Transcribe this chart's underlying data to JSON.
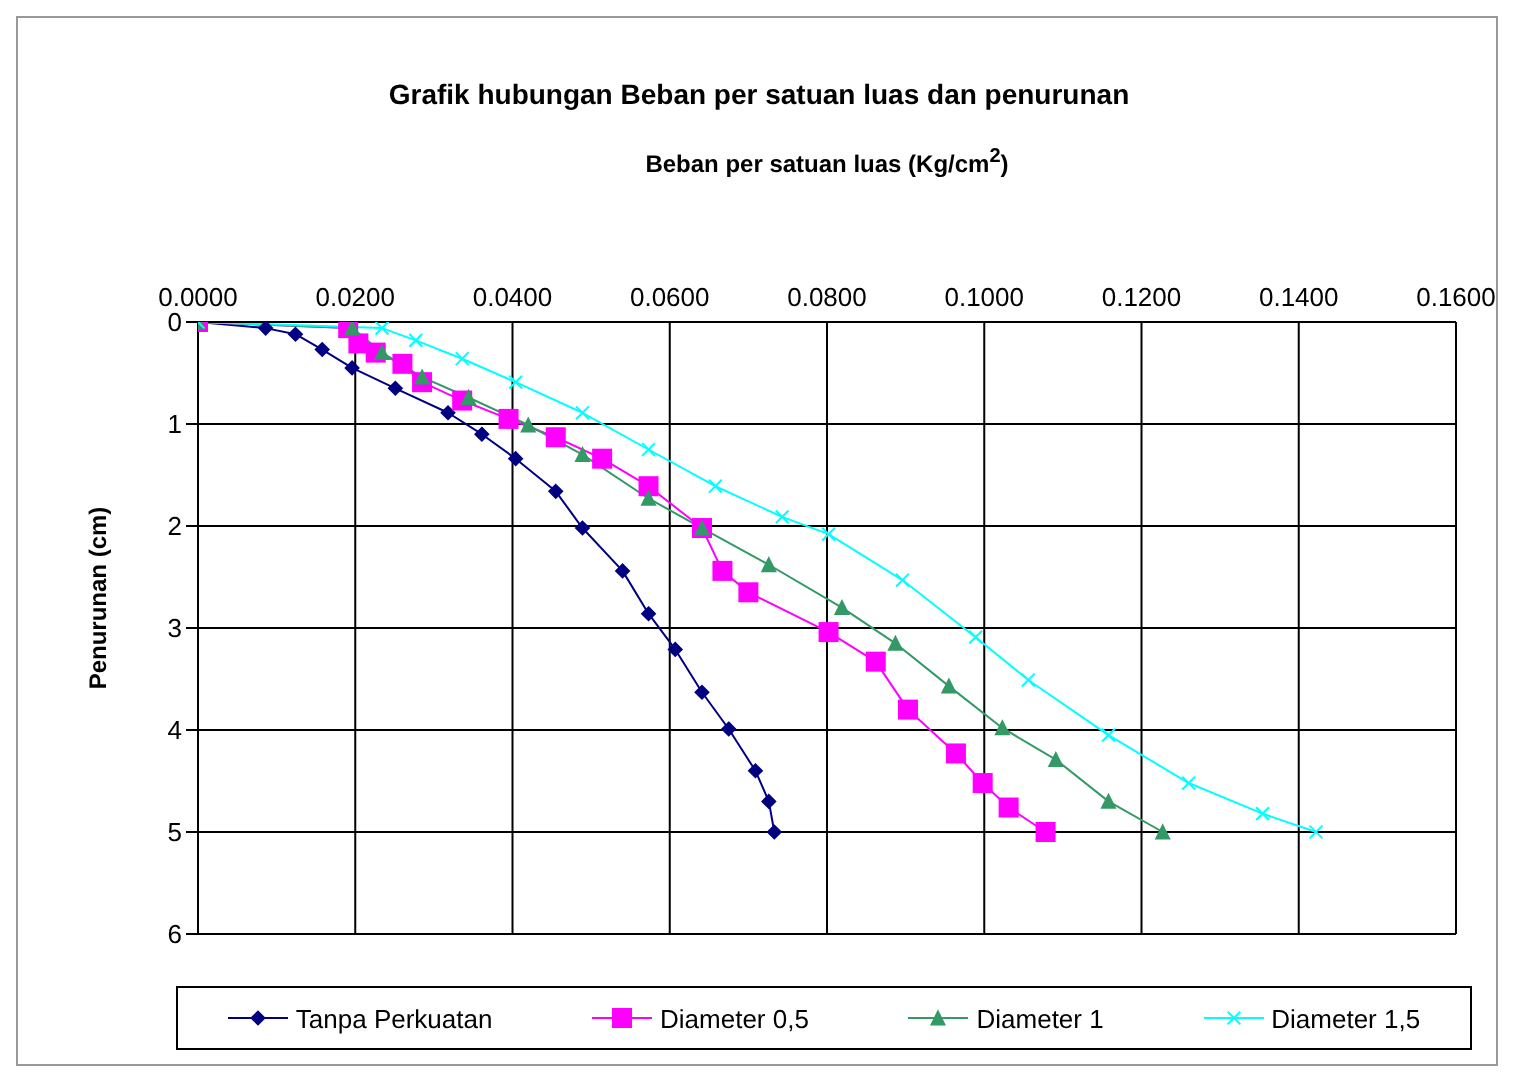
{
  "chart_data": {
    "type": "line",
    "title": "Grafik hubungan Beban per satuan luas dan penurunan",
    "xlabel": "Beban per satuan luas (Kg/cm$^{2}$)",
    "ylabel": "Penurunan  (cm)",
    "xlim": [
      0,
      0.16
    ],
    "xticks": [
      {
        "value": 0,
        "label": "0.0000"
      },
      {
        "value": 0.02,
        "label": "0.0200"
      },
      {
        "value": 0.04,
        "label": "0.0400"
      },
      {
        "value": 0.06,
        "label": "0.0600"
      },
      {
        "value": 0.08,
        "label": "0.0800"
      },
      {
        "value": 0.1,
        "label": "0.1000"
      },
      {
        "value": 0.12,
        "label": "0.1200"
      },
      {
        "value": 0.14,
        "label": "0.1400"
      },
      {
        "value": 0.16,
        "label": "0.1600"
      }
    ],
    "ylim": [
      6,
      0
    ],
    "yticks": [
      0,
      1,
      2,
      3,
      4,
      5,
      6
    ],
    "grid": true,
    "legend": "bottom",
    "series": [
      {
        "name": "Tanpa Perkuatan",
        "color": "#000080",
        "marker": "diamond",
        "x": [
          0,
          0.0086,
          0.0124,
          0.0158,
          0.0196,
          0.0251,
          0.0318,
          0.0361,
          0.0404,
          0.0455,
          0.0489,
          0.054,
          0.0573,
          0.0607,
          0.0641,
          0.0675,
          0.0709,
          0.0726,
          0.0733
        ],
        "values": [
          0,
          0.06,
          0.12,
          0.27,
          0.45,
          0.65,
          0.89,
          1.1,
          1.34,
          1.66,
          2.02,
          2.44,
          2.86,
          3.21,
          3.63,
          3.99,
          4.4,
          4.7,
          5
        ]
      },
      {
        "name": "Diameter 0,5",
        "color": "#ff00ff",
        "marker": "square",
        "x": [
          0,
          0.0191,
          0.0204,
          0.0226,
          0.026,
          0.0285,
          0.0336,
          0.0395,
          0.0455,
          0.0514,
          0.0573,
          0.0641,
          0.0667,
          0.07,
          0.0802,
          0.0862,
          0.0903,
          0.0964,
          0.0998,
          0.1031,
          0.1078
        ],
        "values": [
          0,
          0.06,
          0.21,
          0.3,
          0.41,
          0.59,
          0.77,
          0.95,
          1.13,
          1.34,
          1.61,
          2.02,
          2.44,
          2.65,
          3.04,
          3.33,
          3.8,
          4.23,
          4.52,
          4.76,
          5
        ]
      },
      {
        "name": "Diameter 1",
        "color": "#339966",
        "marker": "triangle",
        "x": [
          0,
          0.0196,
          0.0234,
          0.0285,
          0.0344,
          0.042,
          0.0489,
          0.0573,
          0.0641,
          0.0726,
          0.0819,
          0.0887,
          0.0955,
          0.1023,
          0.1091,
          0.1158,
          0.1227
        ],
        "values": [
          0,
          0.06,
          0.3,
          0.54,
          0.74,
          1.01,
          1.3,
          1.73,
          2.02,
          2.38,
          2.8,
          3.15,
          3.57,
          3.98,
          4.29,
          4.7,
          5
        ]
      },
      {
        "name": "Diameter 1,5",
        "color": "#00ffff",
        "marker": "cross",
        "x": [
          0,
          0.0234,
          0.0277,
          0.0336,
          0.0404,
          0.0489,
          0.0573,
          0.0658,
          0.0743,
          0.0802,
          0.0896,
          0.0989,
          0.1056,
          0.1158,
          0.126,
          0.1354,
          0.1422
        ],
        "values": [
          0,
          0.06,
          0.18,
          0.36,
          0.59,
          0.89,
          1.25,
          1.61,
          1.91,
          2.08,
          2.53,
          3.09,
          3.51,
          4.05,
          4.52,
          4.82,
          5
        ]
      }
    ]
  }
}
